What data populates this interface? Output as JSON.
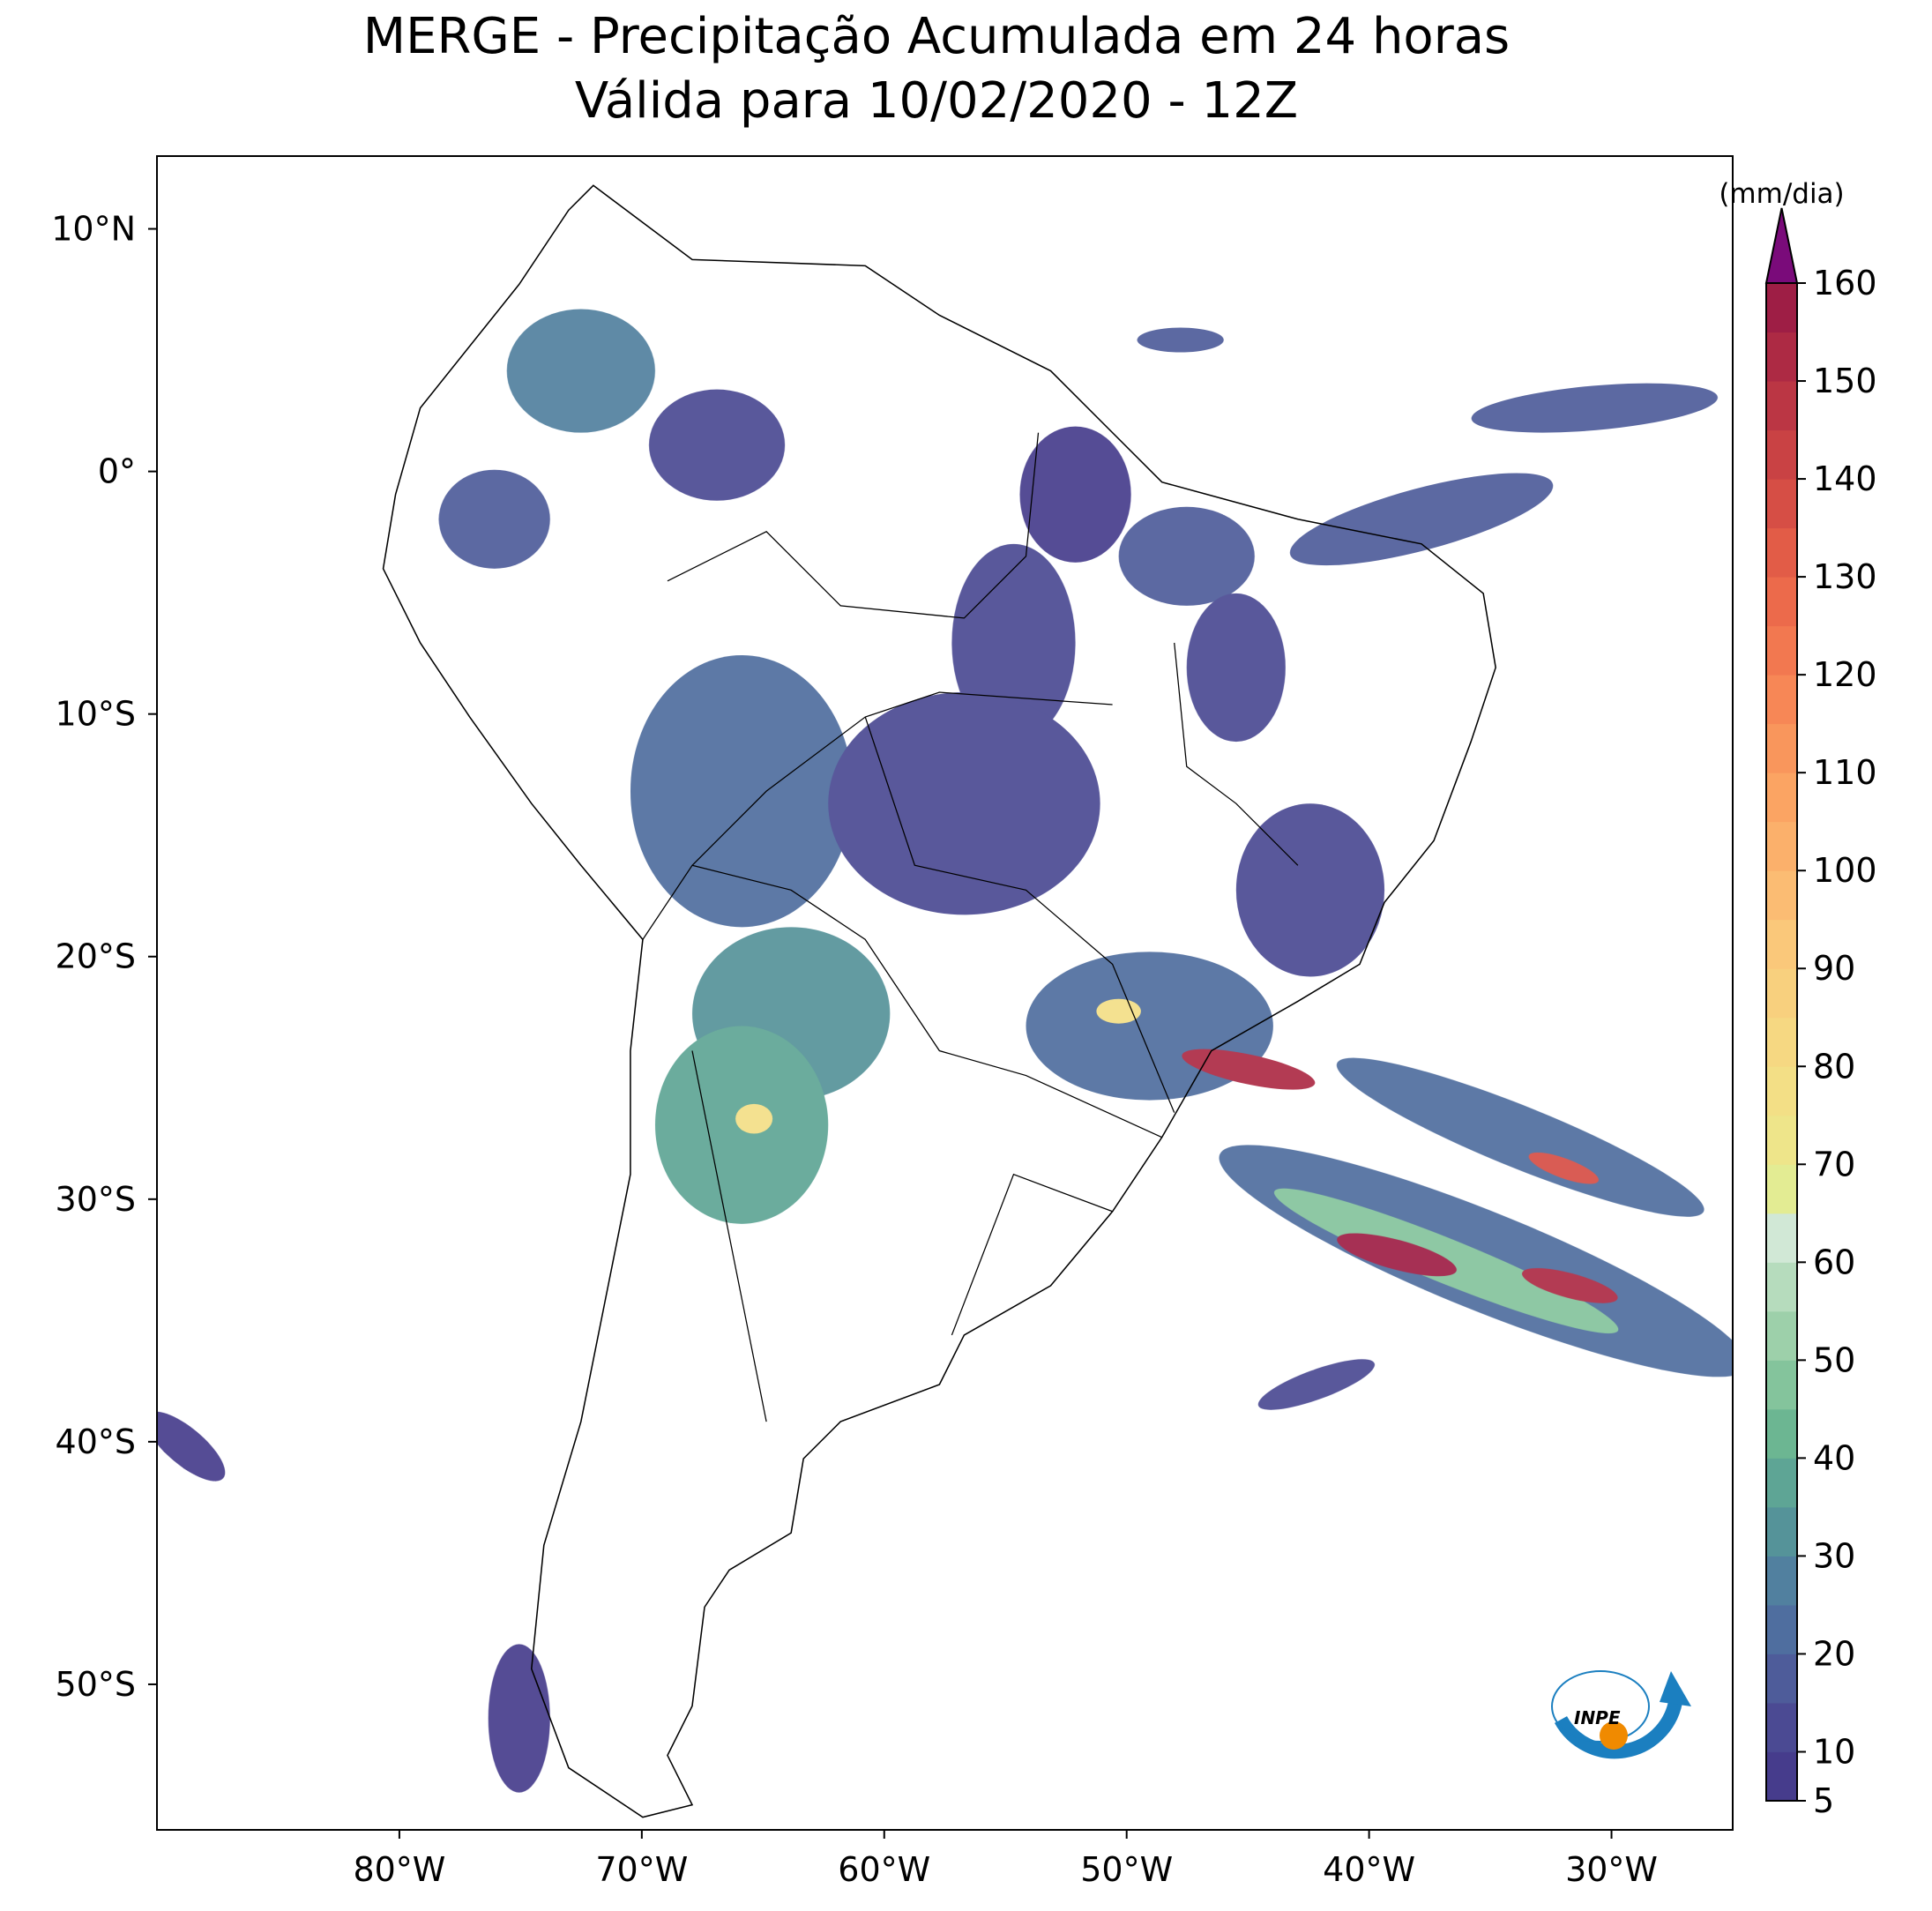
{
  "title": "MERGE - Precipitação Acumulada em 24 horas",
  "subtitle": "Válida para 10/02/2020 - 12Z",
  "map": {
    "lonlim": [
      -90,
      -25
    ],
    "latlim": [
      -56,
      13
    ],
    "lonticks": [
      {
        "value": -80,
        "label": "80°W"
      },
      {
        "value": -70,
        "label": "70°W"
      },
      {
        "value": -60,
        "label": "60°W"
      },
      {
        "value": -50,
        "label": "50°W"
      },
      {
        "value": -40,
        "label": "40°W"
      },
      {
        "value": -30,
        "label": "30°W"
      }
    ],
    "latticks": [
      {
        "value": 10,
        "label": "10°N"
      },
      {
        "value": 0,
        "label": "0°"
      },
      {
        "value": -10,
        "label": "10°S"
      },
      {
        "value": -20,
        "label": "20°S"
      },
      {
        "value": -30,
        "label": "30°S"
      },
      {
        "value": -40,
        "label": "40°S"
      },
      {
        "value": -50,
        "label": "50°S"
      }
    ]
  },
  "colorbar": {
    "label": "(mm/dia)",
    "lim": [
      5,
      160
    ],
    "ticks": [
      5,
      10,
      20,
      30,
      40,
      50,
      60,
      70,
      80,
      90,
      100,
      110,
      120,
      130,
      140,
      150,
      160
    ],
    "colors": [
      "#463c8c",
      "#4b4a93",
      "#4e5c9a",
      "#4f6e9f",
      "#51809f",
      "#559399",
      "#5ea595",
      "#6cb692",
      "#84c49c",
      "#9dd0aa",
      "#b6dcbd",
      "#d1e8d6",
      "#e3ec93",
      "#eee58a",
      "#f3df86",
      "#f6d882",
      "#f8d07e",
      "#fac87a",
      "#fbbc73",
      "#fbb06b",
      "#fba463",
      "#f9965c",
      "#f78756",
      "#f27850",
      "#ec6a4b",
      "#e25c47",
      "#d64e45",
      "#c94244",
      "#bb3644",
      "#ad2a44",
      "#9e1e45"
    ],
    "extend_color": "#7a0b7a"
  },
  "logo": "INPE"
}
